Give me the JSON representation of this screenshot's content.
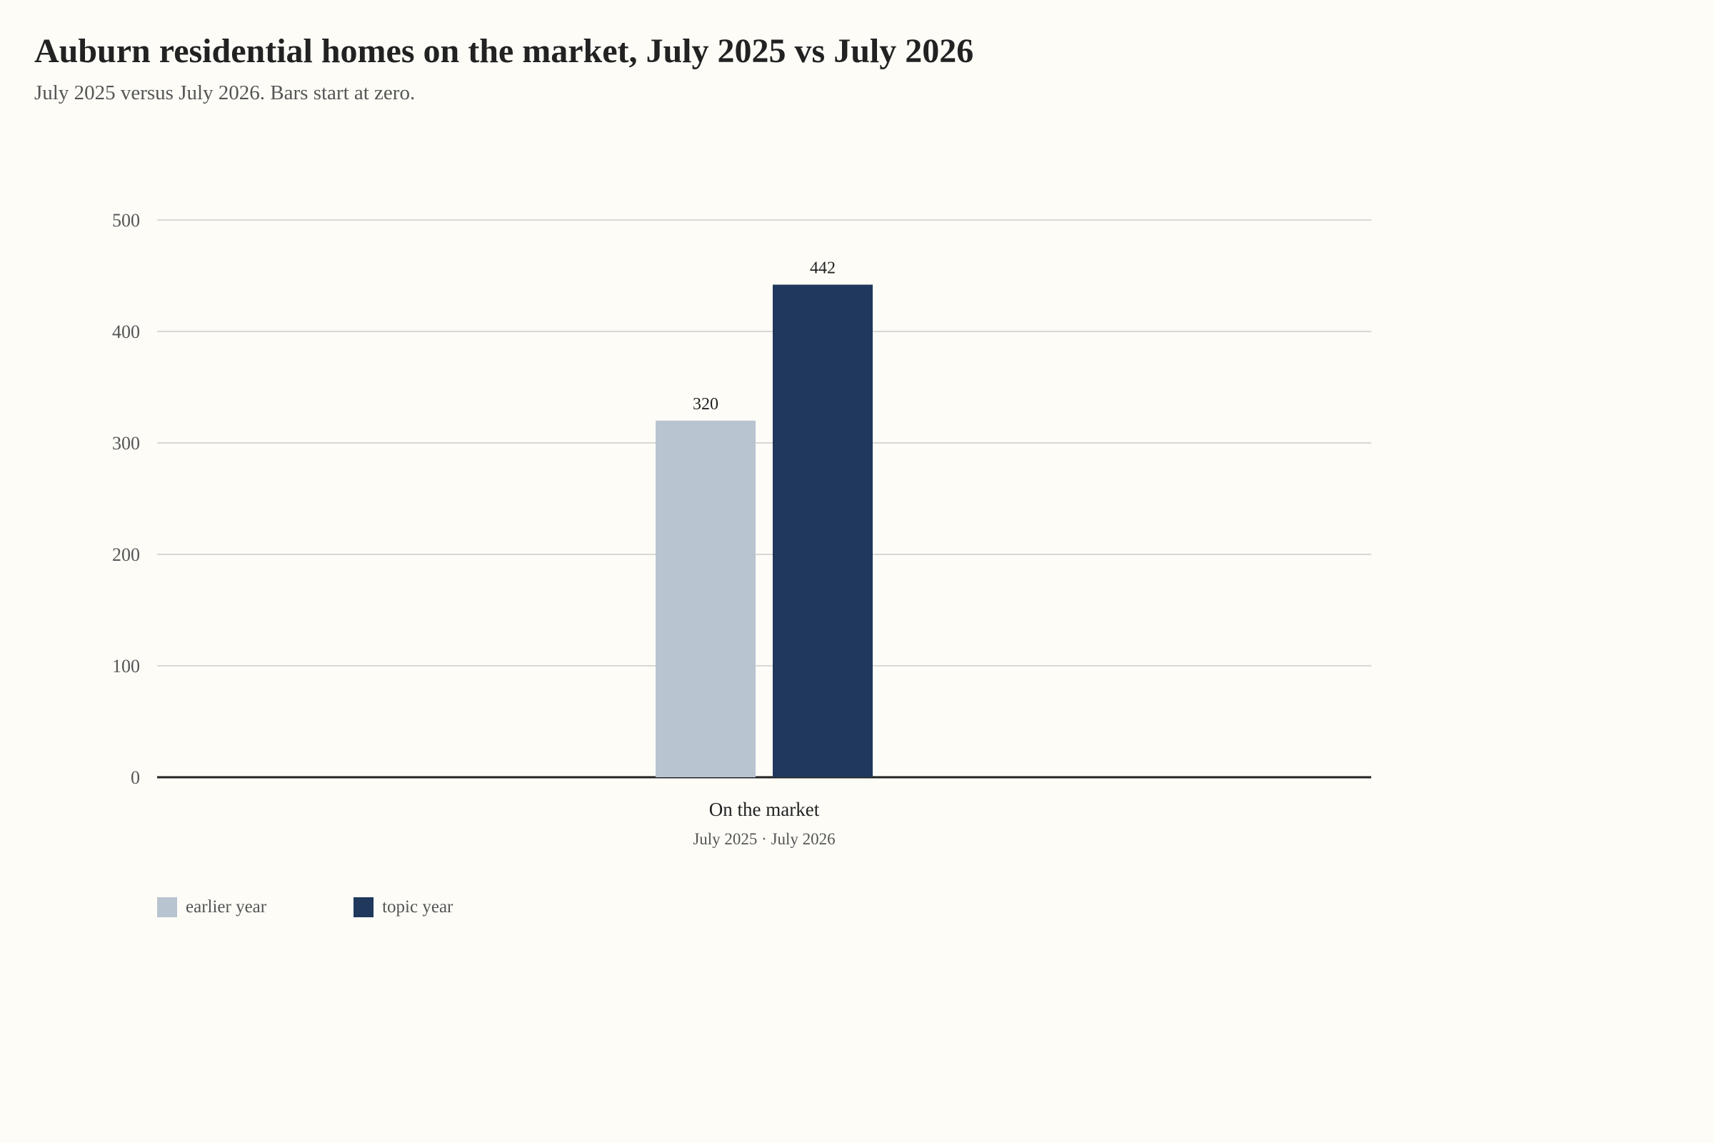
{
  "title": "Auburn residential homes on the market, July 2025 vs July 2026",
  "subtitle": "July 2025 versus July 2026. Bars start at zero.",
  "colors": {
    "background": "#fdfcf7",
    "earlier": "#b8c4d0",
    "topic": "#1f385c",
    "grid": "#cccccc",
    "axis": "#222222",
    "tick_text": "#555555"
  },
  "legend": [
    {
      "label": "earlier year",
      "color": "#b8c4d0"
    },
    {
      "label": "topic year",
      "color": "#1f385c"
    }
  ],
  "chart_data": {
    "type": "bar",
    "categories": [
      "On the market"
    ],
    "category_sublabel": "July 2025 · July 2026",
    "series": [
      {
        "name": "earlier year",
        "values": [
          320
        ],
        "color": "#b8c4d0"
      },
      {
        "name": "topic year",
        "values": [
          442
        ],
        "color": "#1f385c"
      }
    ],
    "ylim": [
      0,
      500
    ],
    "yticks": [
      0,
      100,
      200,
      300,
      400,
      500
    ],
    "grid": true,
    "legend_position": "bottom-left",
    "data_labels": true,
    "xlabel": "",
    "ylabel": ""
  }
}
